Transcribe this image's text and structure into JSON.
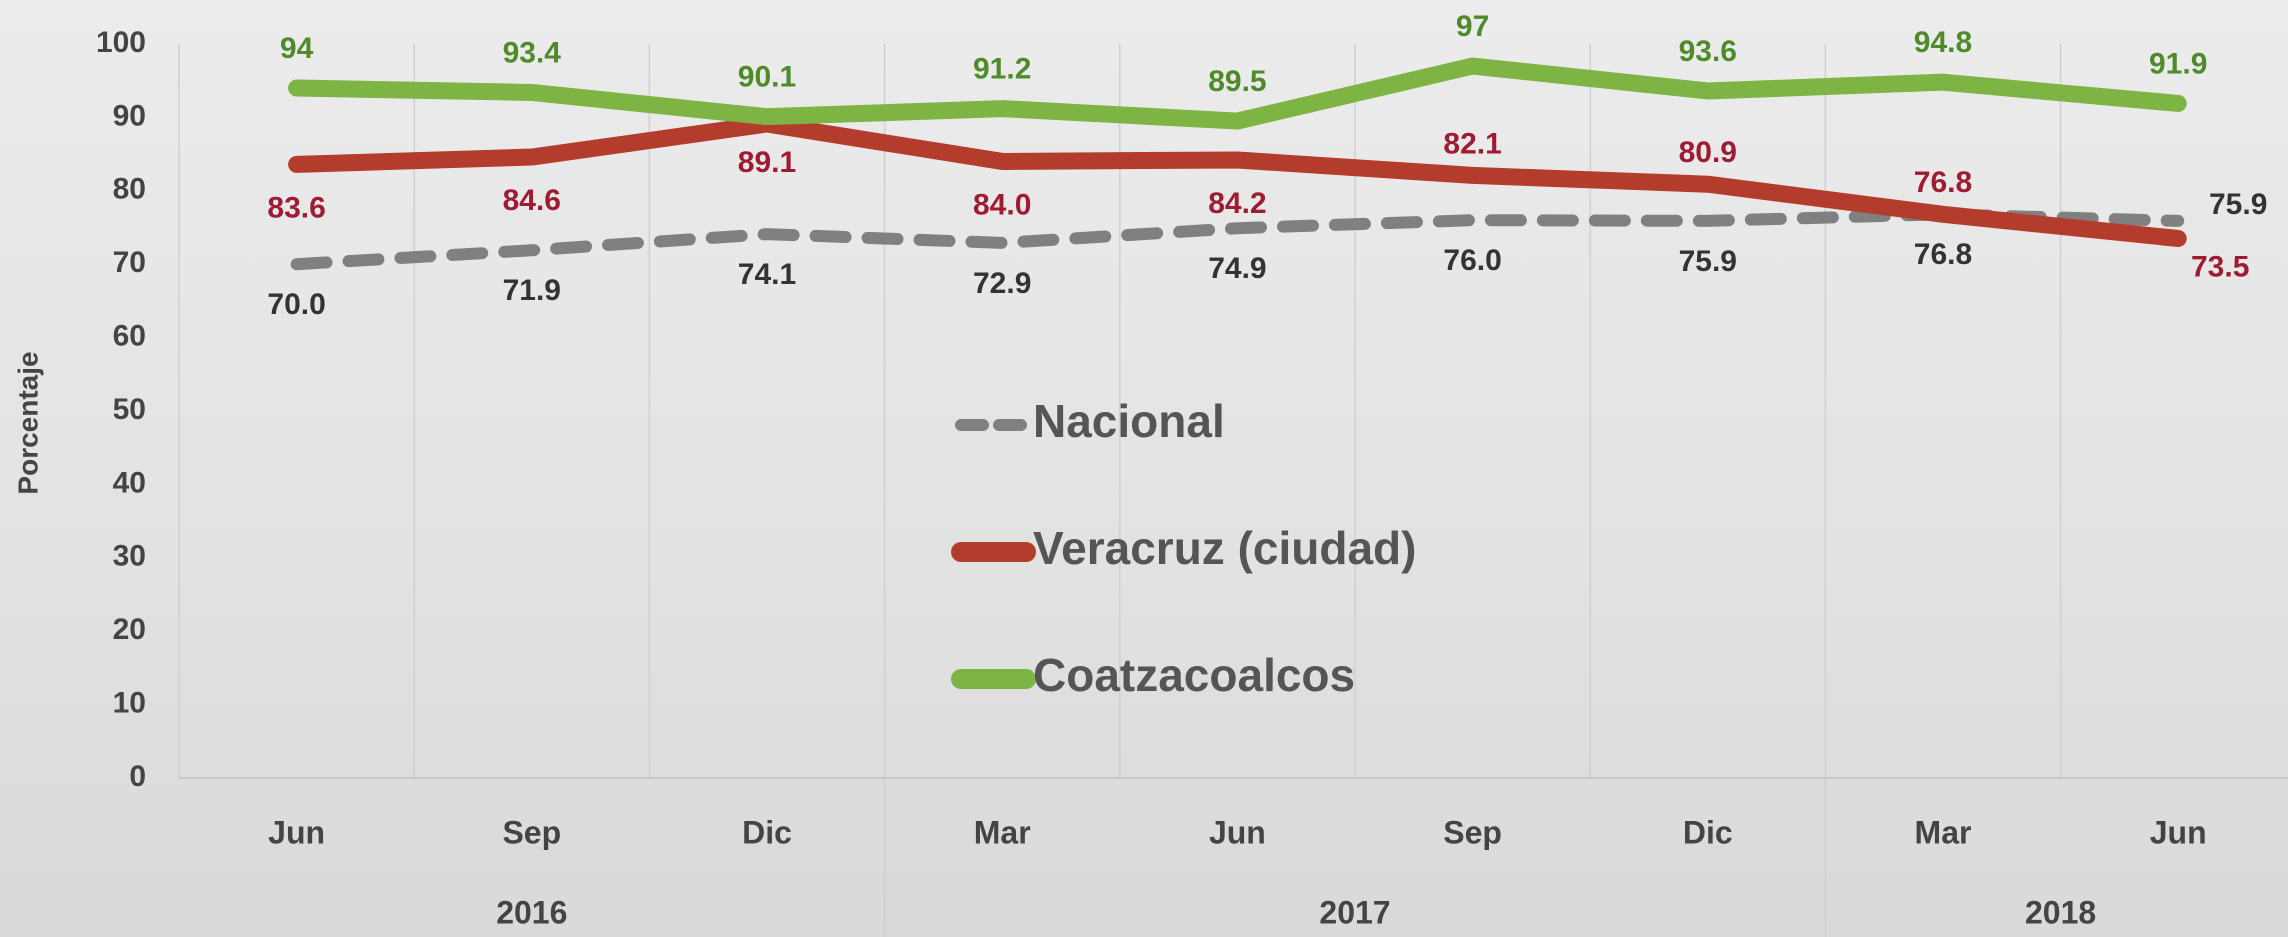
{
  "chart_data": {
    "type": "line",
    "y_label": "Porcentaje",
    "categories": [
      "Jun",
      "Sep",
      "Dic",
      "Mar",
      "Jun",
      "Sep",
      "Dic",
      "Mar",
      "Jun"
    ],
    "category_years": [
      "2016",
      null,
      null,
      "2017",
      null,
      null,
      null,
      "2018",
      null
    ],
    "ylim": [
      0,
      100
    ],
    "yticks": [
      0,
      10,
      20,
      30,
      40,
      50,
      60,
      70,
      80,
      90,
      100
    ],
    "grid": true,
    "legend": "center",
    "series": [
      {
        "name": "Nacional",
        "color": "#808080",
        "label_color": "#333333",
        "dashed": true,
        "values": [
          70.0,
          71.9,
          74.1,
          72.9,
          74.9,
          76.0,
          75.9,
          76.8,
          75.9
        ],
        "value_labels": [
          "70.0",
          "71.9",
          "74.1",
          "72.9",
          "74.9",
          "76.0",
          "75.9",
          "76.8",
          "75.9"
        ]
      },
      {
        "name": "Veracruz (ciudad)",
        "color": "#b43c2c",
        "label_color": "#9e1b32",
        "values": [
          83.6,
          84.6,
          89.1,
          84.0,
          84.2,
          82.1,
          80.9,
          76.8,
          73.5
        ],
        "value_labels": [
          "83.6",
          "84.6",
          "89.1",
          "84.0",
          "84.2",
          "82.1",
          "80.9",
          "76.8",
          "73.5"
        ]
      },
      {
        "name": "Coatzacoalcos",
        "color": "#7db443",
        "label_color": "#4f8a2b",
        "values": [
          94,
          93.4,
          90.1,
          91.2,
          89.5,
          97,
          93.6,
          94.8,
          91.9
        ]
      }
    ]
  }
}
